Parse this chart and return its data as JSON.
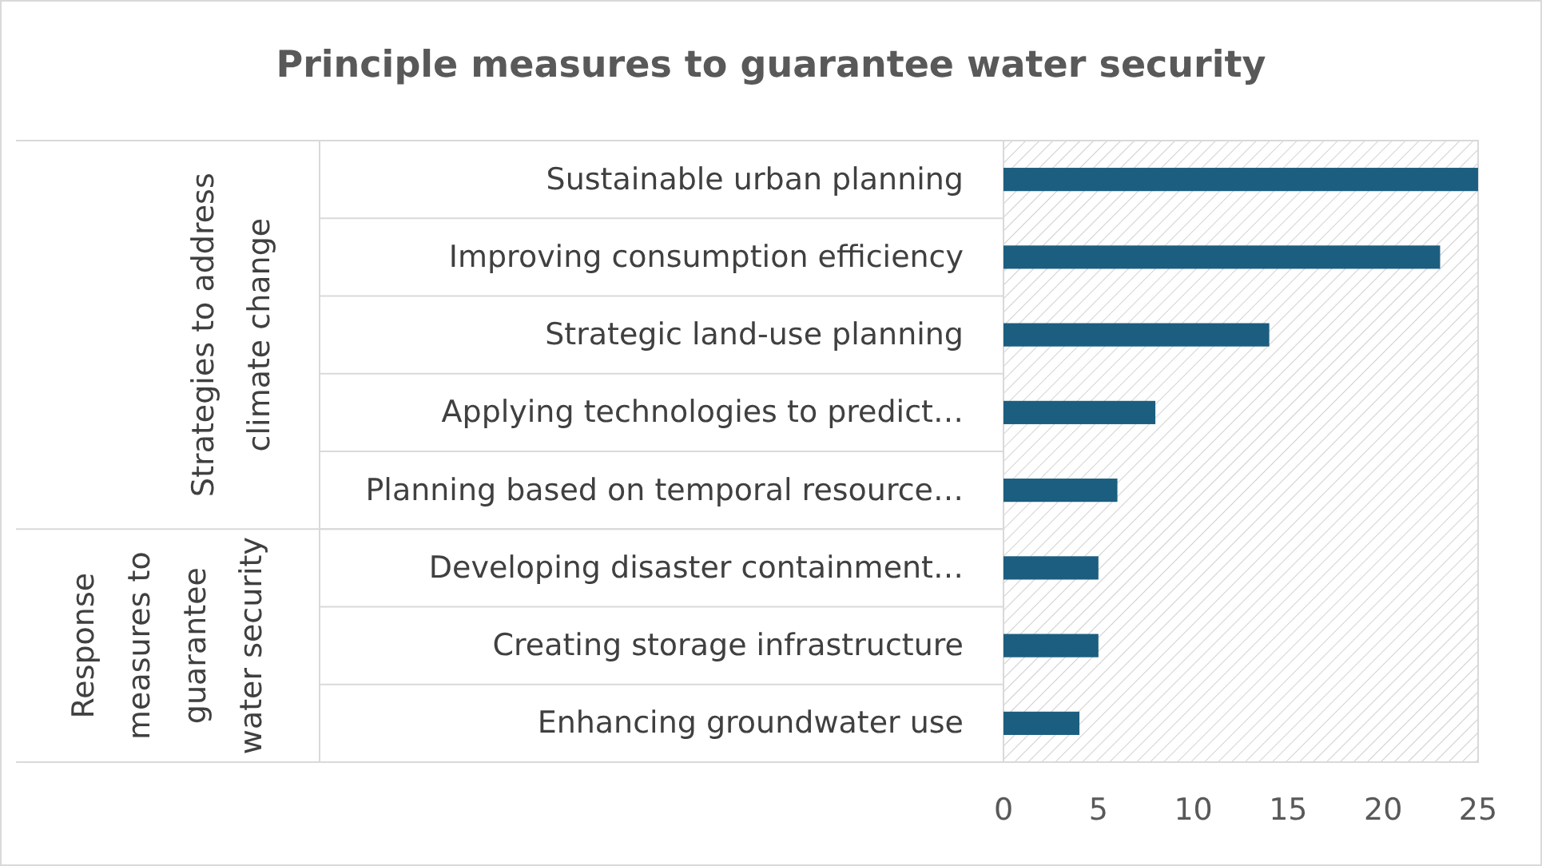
{
  "chart_data": {
    "type": "bar",
    "orientation": "horizontal",
    "title": "Principle measures to guarantee water security",
    "categories": [
      "Sustainable urban planning",
      "Improving consumption efficiency",
      "Strategic land-use planning",
      "Applying technologies to predict…",
      "Planning based on temporal resource…",
      "Developing disaster containment…",
      "Creating storage infrastructure",
      "Enhancing groundwater use"
    ],
    "values": [
      25,
      23,
      14,
      8,
      6,
      5,
      5,
      4
    ],
    "color": "#1b5e80",
    "xlim": [
      0,
      25
    ],
    "xticks": [
      0,
      5,
      10,
      15,
      20,
      25
    ],
    "grid": false,
    "annotations": [
      "Strategies to address climate change",
      "Response measures to guarantee water security"
    ]
  }
}
